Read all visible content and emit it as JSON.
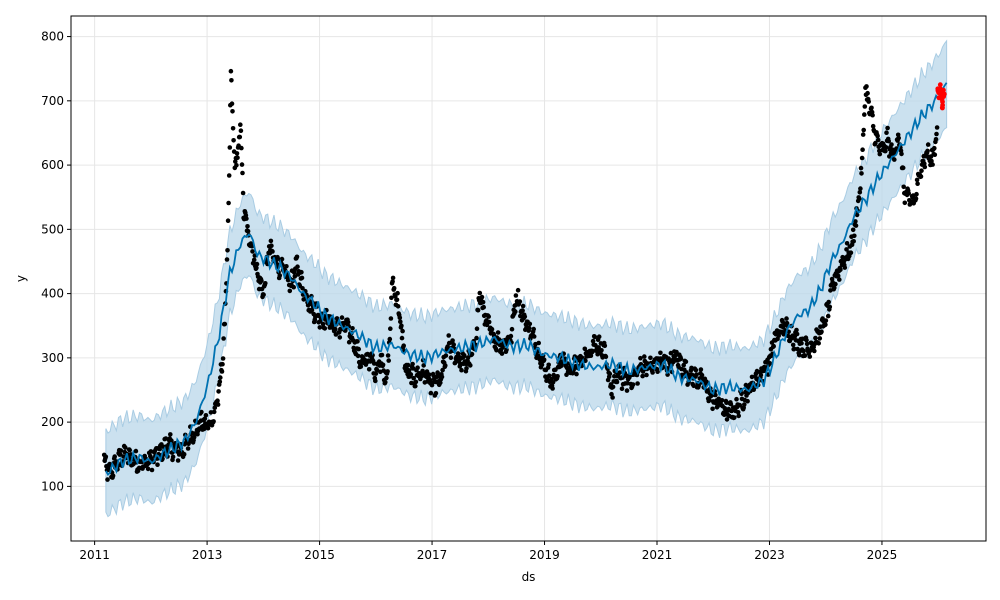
{
  "chart_data": {
    "type": "line",
    "title": "",
    "xlabel": "ds",
    "ylabel": "y",
    "xlim": [
      2010.58,
      2026.85
    ],
    "ylim": [
      15,
      832
    ],
    "grid": true,
    "x_ticks": [
      2011,
      2013,
      2015,
      2017,
      2019,
      2021,
      2023,
      2025
    ],
    "x_tick_labels": [
      "2011",
      "2013",
      "2015",
      "2017",
      "2019",
      "2021",
      "2023",
      "2025"
    ],
    "y_ticks": [
      100,
      200,
      300,
      400,
      500,
      600,
      700,
      800
    ],
    "y_tick_labels": [
      "100",
      "200",
      "300",
      "400",
      "500",
      "600",
      "700",
      "800"
    ],
    "colors": {
      "forecast_line": "#0072b2",
      "uncertainty_band": "#b9d7ea",
      "observed_points": "#000000",
      "recent_points": "#ff0000",
      "grid": "#e6e6e6"
    },
    "series": [
      {
        "kind": "forecast",
        "x": [
          2011.2,
          2011.5,
          2011.8,
          2012.0,
          2012.2,
          2012.4,
          2012.6,
          2012.8,
          2013.0,
          2013.2,
          2013.4,
          2013.6,
          2013.75,
          2013.9,
          2014.1,
          2014.3,
          2014.5,
          2014.7,
          2014.9,
          2015.1,
          2015.4,
          2015.7,
          2016.0,
          2016.3,
          2016.6,
          2016.9,
          2017.2,
          2017.5,
          2017.8,
          2018.1,
          2018.4,
          2018.7,
          2019.0,
          2019.3,
          2019.6,
          2019.9,
          2020.2,
          2020.5,
          2020.8,
          2021.1,
          2021.4,
          2021.7,
          2022.0,
          2022.3,
          2022.6,
          2022.9,
          2023.1,
          2023.3,
          2023.5,
          2023.7,
          2023.9,
          2024.1,
          2024.3,
          2024.5,
          2024.7,
          2024.9,
          2025.1,
          2025.3,
          2025.5,
          2025.7,
          2025.9,
          2026.1,
          2026.15
        ],
        "y": [
          120,
          140,
          145,
          138,
          150,
          160,
          170,
          200,
          255,
          330,
          430,
          480,
          495,
          460,
          450,
          440,
          425,
          400,
          385,
          365,
          350,
          335,
          315,
          320,
          305,
          300,
          310,
          315,
          320,
          330,
          318,
          320,
          305,
          300,
          290,
          285,
          290,
          280,
          285,
          290,
          270,
          265,
          250,
          255,
          250,
          265,
          300,
          340,
          365,
          375,
          405,
          450,
          480,
          520,
          545,
          575,
          600,
          625,
          650,
          675,
          695,
          718,
          730
        ]
      },
      {
        "kind": "uncertainty",
        "x": [
          2011.2,
          2011.5,
          2011.8,
          2012.0,
          2012.2,
          2012.4,
          2012.6,
          2012.8,
          2013.0,
          2013.2,
          2013.4,
          2013.6,
          2013.75,
          2013.9,
          2014.1,
          2014.3,
          2014.5,
          2014.7,
          2014.9,
          2015.1,
          2015.4,
          2015.7,
          2016.0,
          2016.3,
          2016.6,
          2016.9,
          2017.2,
          2017.5,
          2017.8,
          2018.1,
          2018.4,
          2018.7,
          2019.0,
          2019.3,
          2019.6,
          2019.9,
          2020.2,
          2020.5,
          2020.8,
          2021.1,
          2021.4,
          2021.7,
          2022.0,
          2022.3,
          2022.6,
          2022.9,
          2023.1,
          2023.3,
          2023.5,
          2023.7,
          2023.9,
          2024.1,
          2024.3,
          2024.5,
          2024.7,
          2024.9,
          2025.1,
          2025.3,
          2025.5,
          2025.7,
          2025.9,
          2026.1,
          2026.15
        ],
        "lower": [
          55,
          75,
          82,
          74,
          86,
          96,
          106,
          136,
          191,
          266,
          366,
          416,
          431,
          396,
          386,
          376,
          361,
          336,
          321,
          301,
          286,
          271,
          251,
          256,
          241,
          236,
          246,
          251,
          256,
          266,
          254,
          256,
          241,
          236,
          226,
          221,
          226,
          216,
          221,
          226,
          206,
          201,
          186,
          191,
          186,
          201,
          236,
          276,
          301,
          311,
          341,
          386,
          416,
          456,
          481,
          511,
          536,
          561,
          586,
          611,
          631,
          652,
          660
        ],
        "upper": [
          185,
          205,
          210,
          202,
          214,
          224,
          234,
          264,
          319,
          394,
          494,
          544,
          559,
          524,
          514,
          504,
          489,
          464,
          449,
          429,
          414,
          399,
          379,
          384,
          369,
          364,
          374,
          379,
          384,
          394,
          382,
          384,
          369,
          364,
          354,
          349,
          354,
          344,
          349,
          354,
          334,
          329,
          314,
          319,
          314,
          329,
          364,
          404,
          429,
          439,
          469,
          514,
          544,
          584,
          609,
          639,
          664,
          689,
          714,
          739,
          759,
          784,
          795
        ]
      },
      {
        "kind": "observed",
        "x": [
          2011.17,
          2011.25,
          2011.35,
          2011.45,
          2011.55,
          2011.7,
          2011.85,
          2012.0,
          2012.15,
          2012.3,
          2012.45,
          2012.6,
          2012.75,
          2012.9,
          2013.0,
          2013.1,
          2013.2,
          2013.28,
          2013.35,
          2013.4,
          2013.42,
          2013.5,
          2013.55,
          2013.6,
          2013.65,
          2013.7,
          2013.8,
          2013.9,
          2014.0,
          2014.1,
          2014.2,
          2014.3,
          2014.4,
          2014.5,
          2014.6,
          2014.7,
          2014.85,
          2015.0,
          2015.15,
          2015.3,
          2015.45,
          2015.6,
          2015.75,
          2015.9,
          2016.0,
          2016.1,
          2016.2,
          2016.3,
          2016.4,
          2016.55,
          2016.7,
          2016.85,
          2017.0,
          2017.15,
          2017.3,
          2017.45,
          2017.6,
          2017.75,
          2017.85,
          2017.95,
          2018.1,
          2018.25,
          2018.4,
          2018.5,
          2018.6,
          2018.75,
          2018.9,
          2019.0,
          2019.15,
          2019.3,
          2019.45,
          2019.6,
          2019.75,
          2019.9,
          2020.05,
          2020.2,
          2020.3,
          2020.45,
          2020.6,
          2020.75,
          2020.9,
          2021.05,
          2021.2,
          2021.35,
          2021.5,
          2021.65,
          2021.8,
          2021.95,
          2022.1,
          2022.25,
          2022.4,
          2022.55,
          2022.7,
          2022.85,
          2023.0,
          2023.1,
          2023.25,
          2023.4,
          2023.55,
          2023.7,
          2023.85,
          2024.0,
          2024.15,
          2024.3,
          2024.45,
          2024.55,
          2024.65,
          2024.7,
          2024.8,
          2024.9,
          2025.0,
          2025.1,
          2025.2,
          2025.3,
          2025.4,
          2025.5,
          2025.6,
          2025.7,
          2025.8,
          2025.9,
          2025.98
        ],
        "y": [
          140,
          120,
          130,
          145,
          148,
          142,
          135,
          140,
          150,
          165,
          155,
          160,
          185,
          200,
          195,
          205,
          240,
          300,
          430,
          600,
          740,
          590,
          625,
          655,
          530,
          505,
          470,
          430,
          400,
          470,
          455,
          440,
          430,
          415,
          445,
          410,
          380,
          365,
          360,
          345,
          350,
          330,
          290,
          300,
          280,
          300,
          260,
          420,
          380,
          275,
          270,
          280,
          255,
          265,
          320,
          300,
          290,
          310,
          400,
          360,
          330,
          320,
          330,
          400,
          370,
          340,
          310,
          285,
          260,
          300,
          280,
          290,
          305,
          325,
          310,
          250,
          275,
          265,
          270,
          290,
          285,
          295,
          290,
          300,
          280,
          270,
          265,
          240,
          230,
          215,
          220,
          240,
          260,
          275,
          295,
          330,
          350,
          335,
          320,
          315,
          330,
          360,
          420,
          450,
          470,
          520,
          600,
          720,
          680,
          640,
          620,
          640,
          610,
          650,
          560,
          540,
          550,
          600,
          620,
          605,
          660
        ]
      },
      {
        "kind": "recent",
        "x": [
          2026.0,
          2026.02,
          2026.04,
          2026.06,
          2026.08,
          2026.1
        ],
        "y": [
          715,
          710,
          720,
          705,
          695,
          712
        ]
      }
    ]
  }
}
